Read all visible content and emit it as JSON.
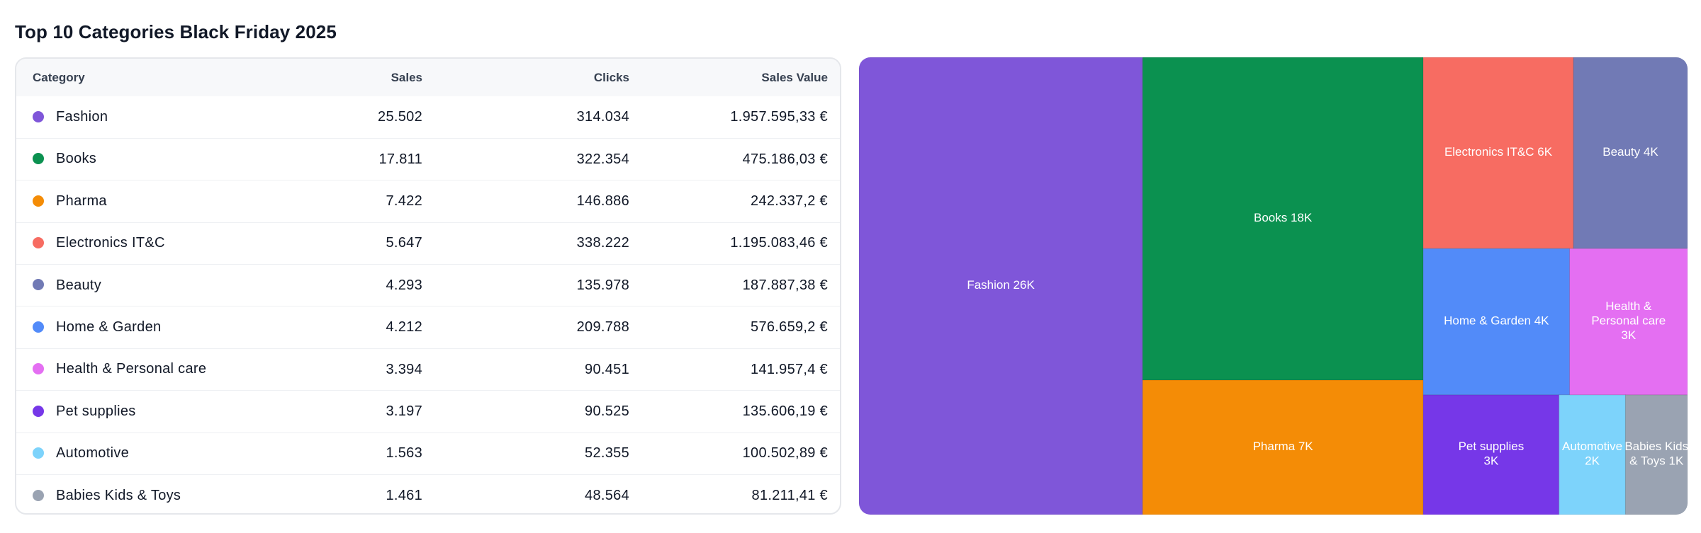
{
  "title": "Top 10 Categories Black Friday 2025",
  "table": {
    "headers": {
      "category": "Category",
      "sales": "Sales",
      "clicks": "Clicks",
      "sales_value": "Sales Value"
    },
    "rows": [
      {
        "category": "Fashion",
        "color": "#7f56d9",
        "sales": "25.502",
        "clicks": "314.034",
        "sales_value": "1.957.595,33 €"
      },
      {
        "category": "Books",
        "color": "#0b9150",
        "sales": "17.811",
        "clicks": "322.354",
        "sales_value": "475.186,03 €"
      },
      {
        "category": "Pharma",
        "color": "#f48c06",
        "sales": "7.422",
        "clicks": "146.886",
        "sales_value": "242.337,2 €"
      },
      {
        "category": "Electronics IT&C",
        "color": "#f76c62",
        "sales": "5.647",
        "clicks": "338.222",
        "sales_value": "1.195.083,46 €"
      },
      {
        "category": "Beauty",
        "color": "#717ab5",
        "sales": "4.293",
        "clicks": "135.978",
        "sales_value": "187.887,38 €"
      },
      {
        "category": "Home & Garden",
        "color": "#528bf9",
        "sales": "4.212",
        "clicks": "209.788",
        "sales_value": "576.659,2 €"
      },
      {
        "category": "Health & Personal care",
        "color": "#e46ff2",
        "sales": "3.394",
        "clicks": "90.451",
        "sales_value": "141.957,4 €"
      },
      {
        "category": "Pet supplies",
        "color": "#7637e8",
        "sales": "3.197",
        "clicks": "90.525",
        "sales_value": "135.606,19 €"
      },
      {
        "category": "Automotive",
        "color": "#7dd3fb",
        "sales": "1.563",
        "clicks": "52.355",
        "sales_value": "100.502,89 €"
      },
      {
        "category": "Babies Kids & Toys",
        "color": "#9aa3b2",
        "sales": "1.461",
        "clicks": "48.564",
        "sales_value": "81.211,41 €"
      }
    ]
  },
  "chart_data": {
    "type": "treemap",
    "title": "Top 10 Categories Black Friday 2025",
    "value_field": "Sales",
    "series": [
      {
        "name": "Fashion",
        "value": 25502,
        "label_lines": [
          "Fashion 26K"
        ],
        "color": "#7f56d9"
      },
      {
        "name": "Books",
        "value": 17811,
        "label_lines": [
          "Books 18K"
        ],
        "color": "#0b9150"
      },
      {
        "name": "Pharma",
        "value": 7422,
        "label_lines": [
          "Pharma 7K"
        ],
        "color": "#f48c06"
      },
      {
        "name": "Electronics IT&C",
        "value": 5647,
        "label_lines": [
          "Electronics IT&C 6K"
        ],
        "color": "#f76c62"
      },
      {
        "name": "Beauty",
        "value": 4293,
        "label_lines": [
          "Beauty 4K"
        ],
        "color": "#717ab5"
      },
      {
        "name": "Home & Garden",
        "value": 4212,
        "label_lines": [
          "Home & Garden 4K"
        ],
        "color": "#528bf9"
      },
      {
        "name": "Health & Personal care",
        "value": 3394,
        "label_lines": [
          "Health &",
          "Personal care",
          "3K"
        ],
        "color": "#e46ff2"
      },
      {
        "name": "Pet supplies",
        "value": 3197,
        "label_lines": [
          "Pet supplies",
          "3K"
        ],
        "color": "#7637e8"
      },
      {
        "name": "Automotive",
        "value": 1563,
        "label_lines": [
          "Automotive",
          "2K"
        ],
        "color": "#7dd3fb"
      },
      {
        "name": "Babies Kids & Toys",
        "value": 1461,
        "label_lines": [
          "Babies Kids",
          "& Toys 1K"
        ],
        "color": "#9aa3b2"
      }
    ]
  }
}
